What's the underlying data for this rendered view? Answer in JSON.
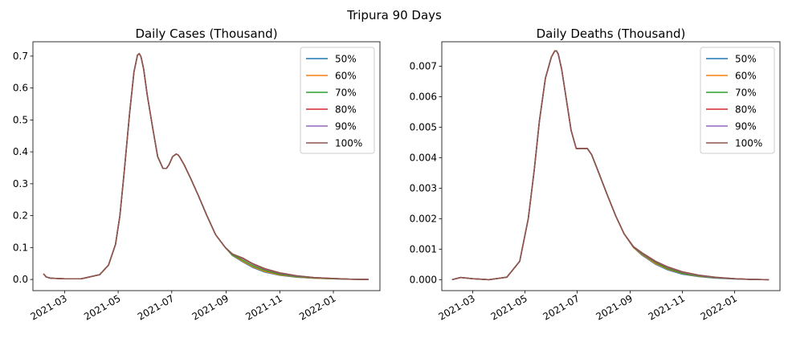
{
  "figure": {
    "suptitle": "Tripura 90 Days"
  },
  "chart_data": [
    {
      "type": "line",
      "title": "Daily Cases (Thousand)",
      "xlabel": "",
      "ylabel": "",
      "x_axis": "date",
      "xlim": [
        "2021-01-24",
        "2022-02-23"
      ],
      "ylim": [
        -0.035,
        0.745
      ],
      "yticks": [
        0.0,
        0.1,
        0.2,
        0.3,
        0.4,
        0.5,
        0.6,
        0.7
      ],
      "ytick_labels": [
        "0.0",
        "0.1",
        "0.2",
        "0.3",
        "0.4",
        "0.5",
        "0.6",
        "0.7"
      ],
      "xticks": [
        "2021-03-01",
        "2021-05-01",
        "2021-07-01",
        "2021-09-01",
        "2021-11-01",
        "2022-01-01"
      ],
      "xtick_labels": [
        "2021-03",
        "2021-05",
        "2021-07",
        "2021-09",
        "2021-11",
        "2022-01"
      ],
      "legend_position": "top-right",
      "grid": false,
      "x": [
        "2021-02-05",
        "2021-02-08",
        "2021-02-13",
        "2021-03-01",
        "2021-03-20",
        "2021-04-10",
        "2021-04-20",
        "2021-04-28",
        "2021-05-03",
        "2021-05-08",
        "2021-05-14",
        "2021-05-19",
        "2021-05-23",
        "2021-05-25",
        "2021-05-27",
        "2021-05-30",
        "2021-06-03",
        "2021-06-09",
        "2021-06-15",
        "2021-06-21",
        "2021-06-25",
        "2021-06-28",
        "2021-07-02",
        "2021-07-06",
        "2021-07-08",
        "2021-07-10",
        "2021-07-15",
        "2021-07-22",
        "2021-07-31",
        "2021-08-10",
        "2021-08-20",
        "2021-08-31",
        "2021-09-08",
        "2021-09-20",
        "2021-10-01",
        "2021-10-15",
        "2021-11-01",
        "2021-11-20",
        "2021-12-10",
        "2022-01-01",
        "2022-01-20",
        "2022-02-10"
      ],
      "series": [
        {
          "name": "50%",
          "values": [
            0.018,
            0.008,
            0.004,
            0.002,
            0.002,
            0.015,
            0.045,
            0.11,
            0.2,
            0.34,
            0.52,
            0.65,
            0.703,
            0.708,
            0.698,
            0.66,
            0.58,
            0.48,
            0.385,
            0.348,
            0.348,
            0.36,
            0.385,
            0.393,
            0.391,
            0.384,
            0.36,
            0.32,
            0.265,
            0.2,
            0.14,
            0.1,
            0.075,
            0.055,
            0.038,
            0.023,
            0.013,
            0.007,
            0.004,
            0.002,
            0.001,
            0.0
          ]
        },
        {
          "name": "60%",
          "values": [
            0.018,
            0.008,
            0.004,
            0.002,
            0.002,
            0.015,
            0.045,
            0.11,
            0.2,
            0.34,
            0.52,
            0.65,
            0.703,
            0.708,
            0.698,
            0.66,
            0.58,
            0.48,
            0.385,
            0.348,
            0.348,
            0.36,
            0.385,
            0.393,
            0.391,
            0.384,
            0.36,
            0.32,
            0.265,
            0.2,
            0.14,
            0.1,
            0.076,
            0.057,
            0.04,
            0.025,
            0.014,
            0.008,
            0.004,
            0.002,
            0.001,
            0.0
          ]
        },
        {
          "name": "70%",
          "values": [
            0.018,
            0.008,
            0.004,
            0.002,
            0.002,
            0.015,
            0.045,
            0.11,
            0.2,
            0.34,
            0.52,
            0.65,
            0.703,
            0.708,
            0.698,
            0.66,
            0.58,
            0.48,
            0.385,
            0.348,
            0.348,
            0.36,
            0.385,
            0.393,
            0.391,
            0.384,
            0.36,
            0.32,
            0.265,
            0.2,
            0.14,
            0.1,
            0.077,
            0.06,
            0.043,
            0.028,
            0.016,
            0.009,
            0.005,
            0.002,
            0.001,
            0.0
          ]
        },
        {
          "name": "80%",
          "values": [
            0.018,
            0.008,
            0.004,
            0.002,
            0.002,
            0.015,
            0.045,
            0.11,
            0.2,
            0.34,
            0.52,
            0.65,
            0.703,
            0.708,
            0.698,
            0.66,
            0.58,
            0.48,
            0.385,
            0.348,
            0.348,
            0.36,
            0.385,
            0.393,
            0.391,
            0.384,
            0.36,
            0.32,
            0.265,
            0.2,
            0.14,
            0.1,
            0.08,
            0.065,
            0.048,
            0.032,
            0.019,
            0.011,
            0.006,
            0.003,
            0.001,
            0.0
          ]
        },
        {
          "name": "90%",
          "values": [
            0.018,
            0.008,
            0.004,
            0.002,
            0.002,
            0.015,
            0.045,
            0.11,
            0.2,
            0.34,
            0.52,
            0.65,
            0.703,
            0.708,
            0.698,
            0.66,
            0.58,
            0.48,
            0.385,
            0.348,
            0.348,
            0.36,
            0.385,
            0.393,
            0.391,
            0.384,
            0.36,
            0.32,
            0.265,
            0.2,
            0.14,
            0.1,
            0.08,
            0.066,
            0.049,
            0.033,
            0.02,
            0.011,
            0.006,
            0.003,
            0.001,
            0.0
          ]
        },
        {
          "name": "100%",
          "values": [
            0.018,
            0.008,
            0.004,
            0.002,
            0.002,
            0.015,
            0.045,
            0.11,
            0.2,
            0.34,
            0.52,
            0.65,
            0.703,
            0.708,
            0.698,
            0.66,
            0.58,
            0.48,
            0.385,
            0.348,
            0.348,
            0.36,
            0.385,
            0.393,
            0.391,
            0.384,
            0.36,
            0.32,
            0.265,
            0.2,
            0.14,
            0.1,
            0.08,
            0.067,
            0.05,
            0.034,
            0.021,
            0.012,
            0.006,
            0.003,
            0.001,
            0.0
          ]
        }
      ]
    },
    {
      "type": "line",
      "title": "Daily Deaths (Thousand)",
      "xlabel": "",
      "ylabel": "",
      "x_axis": "date",
      "xlim": [
        "2021-01-24",
        "2022-02-23"
      ],
      "ylim": [
        -0.00036,
        0.0078
      ],
      "yticks": [
        0.0,
        0.001,
        0.002,
        0.003,
        0.004,
        0.005,
        0.006,
        0.007
      ],
      "ytick_labels": [
        "0.000",
        "0.001",
        "0.002",
        "0.003",
        "0.004",
        "0.005",
        "0.006",
        "0.007"
      ],
      "xticks": [
        "2021-03-01",
        "2021-05-01",
        "2021-07-01",
        "2021-09-01",
        "2021-11-01",
        "2022-01-01"
      ],
      "xtick_labels": [
        "2021-03",
        "2021-05",
        "2021-07",
        "2021-09",
        "2021-11",
        "2022-01"
      ],
      "legend_position": "top-right",
      "grid": false,
      "x": [
        "2021-02-05",
        "2021-02-15",
        "2021-03-01",
        "2021-03-20",
        "2021-04-10",
        "2021-04-25",
        "2021-05-05",
        "2021-05-12",
        "2021-05-18",
        "2021-05-25",
        "2021-06-01",
        "2021-06-05",
        "2021-06-07",
        "2021-06-09",
        "2021-06-13",
        "2021-06-18",
        "2021-06-24",
        "2021-06-30",
        "2021-07-05",
        "2021-07-09",
        "2021-07-13",
        "2021-07-18",
        "2021-07-25",
        "2021-08-05",
        "2021-08-15",
        "2021-08-25",
        "2021-09-05",
        "2021-09-15",
        "2021-10-01",
        "2021-10-15",
        "2021-11-01",
        "2021-11-20",
        "2021-12-10",
        "2022-01-01",
        "2022-01-20",
        "2022-02-10"
      ],
      "series": [
        {
          "name": "50%",
          "values": [
            0.0,
            7e-05,
            3e-05,
            0.0,
            8e-05,
            0.0006,
            0.002,
            0.0036,
            0.0052,
            0.0066,
            0.0073,
            0.0075,
            0.0075,
            0.0074,
            0.0069,
            0.006,
            0.0049,
            0.0043,
            0.0043,
            0.0043,
            0.0043,
            0.0041,
            0.0036,
            0.0028,
            0.0021,
            0.0015,
            0.00105,
            0.0008,
            0.0005,
            0.00032,
            0.00018,
            0.0001,
            5e-05,
            2e-05,
            1e-05,
            0.0
          ]
        },
        {
          "name": "60%",
          "values": [
            0.0,
            7e-05,
            3e-05,
            0.0,
            8e-05,
            0.0006,
            0.002,
            0.0036,
            0.0052,
            0.0066,
            0.0073,
            0.0075,
            0.0075,
            0.0074,
            0.0069,
            0.006,
            0.0049,
            0.0043,
            0.0043,
            0.0043,
            0.0043,
            0.0041,
            0.0036,
            0.0028,
            0.0021,
            0.0015,
            0.00105,
            0.00082,
            0.00052,
            0.00034,
            0.0002,
            0.00011,
            6e-05,
            3e-05,
            1e-05,
            0.0
          ]
        },
        {
          "name": "70%",
          "values": [
            0.0,
            7e-05,
            3e-05,
            0.0,
            8e-05,
            0.0006,
            0.002,
            0.0036,
            0.0052,
            0.0066,
            0.0073,
            0.0075,
            0.0075,
            0.0074,
            0.0069,
            0.006,
            0.0049,
            0.0043,
            0.0043,
            0.0043,
            0.0043,
            0.0041,
            0.0036,
            0.0028,
            0.0021,
            0.0015,
            0.00106,
            0.00084,
            0.00055,
            0.00036,
            0.00021,
            0.00012,
            6e-05,
            3e-05,
            1e-05,
            0.0
          ]
        },
        {
          "name": "80%",
          "values": [
            0.0,
            7e-05,
            3e-05,
            0.0,
            8e-05,
            0.0006,
            0.002,
            0.0036,
            0.0052,
            0.0066,
            0.0073,
            0.0075,
            0.0075,
            0.0074,
            0.0069,
            0.006,
            0.0049,
            0.0043,
            0.0043,
            0.0043,
            0.0043,
            0.0041,
            0.0036,
            0.0028,
            0.0021,
            0.0015,
            0.00107,
            0.00086,
            0.00058,
            0.0004,
            0.00024,
            0.00014,
            7e-05,
            3e-05,
            1e-05,
            0.0
          ]
        },
        {
          "name": "90%",
          "values": [
            0.0,
            7e-05,
            3e-05,
            0.0,
            8e-05,
            0.0006,
            0.002,
            0.0036,
            0.0052,
            0.0066,
            0.0073,
            0.0075,
            0.0075,
            0.0074,
            0.0069,
            0.006,
            0.0049,
            0.0043,
            0.0043,
            0.0043,
            0.0043,
            0.0041,
            0.0036,
            0.0028,
            0.0021,
            0.0015,
            0.00108,
            0.00087,
            0.00059,
            0.00041,
            0.00025,
            0.00014,
            7e-05,
            3e-05,
            1e-05,
            0.0
          ]
        },
        {
          "name": "100%",
          "values": [
            0.0,
            7e-05,
            3e-05,
            0.0,
            8e-05,
            0.0006,
            0.002,
            0.0036,
            0.0052,
            0.0066,
            0.0073,
            0.0075,
            0.0075,
            0.0074,
            0.0069,
            0.006,
            0.0049,
            0.0043,
            0.0043,
            0.0043,
            0.0043,
            0.0041,
            0.0036,
            0.0028,
            0.0021,
            0.0015,
            0.00108,
            0.00088,
            0.0006,
            0.00042,
            0.00026,
            0.00015,
            8e-05,
            3e-05,
            1e-05,
            0.0
          ]
        }
      ]
    }
  ],
  "colors": {
    "series": [
      "#1f77b4",
      "#ff7f0e",
      "#2ca02c",
      "#d62728",
      "#9467bd",
      "#8c564b"
    ],
    "axis": "#000000",
    "legend_border": "#cccccc"
  }
}
